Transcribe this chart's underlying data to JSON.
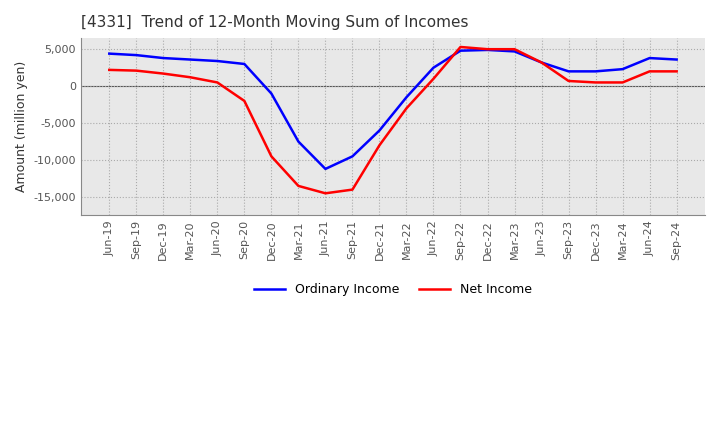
{
  "title": "[4331]  Trend of 12-Month Moving Sum of Incomes",
  "ylabel": "Amount (million yen)",
  "ylim": [
    -17500,
    6500
  ],
  "yticks": [
    5000,
    0,
    -5000,
    -10000,
    -15000
  ],
  "legend_labels": [
    "Ordinary Income",
    "Net Income"
  ],
  "ordinary_income_color": "#0000FF",
  "net_income_color": "#FF0000",
  "x_labels": [
    "Jun-19",
    "Sep-19",
    "Dec-19",
    "Mar-20",
    "Jun-20",
    "Sep-20",
    "Dec-20",
    "Mar-21",
    "Jun-21",
    "Sep-21",
    "Dec-21",
    "Mar-22",
    "Jun-22",
    "Sep-22",
    "Dec-22",
    "Mar-23",
    "Jun-23",
    "Sep-23",
    "Dec-23",
    "Mar-24",
    "Jun-24",
    "Sep-24"
  ],
  "ordinary_income": [
    4400,
    4200,
    3800,
    3600,
    3400,
    3000,
    -1000,
    -7500,
    -11200,
    -9500,
    -6000,
    -1500,
    2500,
    4800,
    4900,
    4700,
    3200,
    2000,
    2000,
    2300,
    3800,
    3600
  ],
  "net_income": [
    2200,
    2100,
    1700,
    1200,
    500,
    -2000,
    -9500,
    -13500,
    -14500,
    -14000,
    -8000,
    -3000,
    1000,
    5300,
    5000,
    5000,
    3200,
    700,
    500,
    500,
    2000,
    2000
  ],
  "plot_bg_color": "#e8e8e8",
  "fig_bg_color": "#ffffff",
  "grid_color": "#aaaaaa",
  "text_color": "#333333",
  "tick_color": "#555555",
  "line_width": 1.8,
  "title_fontsize": 11,
  "axis_label_fontsize": 9,
  "tick_fontsize": 8,
  "legend_fontsize": 9
}
